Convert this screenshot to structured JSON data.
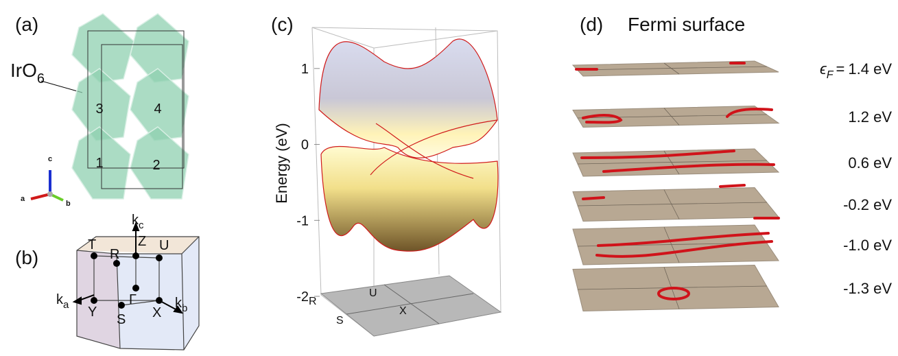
{
  "panel_a": {
    "label": "(a)",
    "molecule": "IrO",
    "molecule_sub": "6",
    "sites": [
      "1",
      "2",
      "3",
      "4"
    ],
    "axes": [
      "a",
      "b",
      "c"
    ]
  },
  "panel_b": {
    "label": "(b)",
    "k_letter": "k",
    "k_axes": [
      "c",
      "a",
      "b"
    ],
    "points": [
      "T",
      "R",
      "Z",
      "U",
      "Y",
      "Γ",
      "S",
      "X"
    ]
  },
  "panel_c": {
    "label": "(c)",
    "energy_axis": {
      "label": "Energy (eV)",
      "lim": [
        -2,
        1.45
      ],
      "ticks": [
        1,
        0,
        -1,
        -2
      ]
    },
    "base_labels": [
      "R",
      "S",
      "U",
      "X"
    ]
  },
  "panel_d": {
    "label": "(d)",
    "title": "Fermi surface",
    "symbol": "ϵ",
    "symbol_sub": "F",
    "equals": "=",
    "levels": [
      "1.4 eV",
      "1.2 eV",
      "0.6 eV",
      "-0.2 eV",
      "-1.0 eV",
      "-1.3 eV"
    ]
  }
}
